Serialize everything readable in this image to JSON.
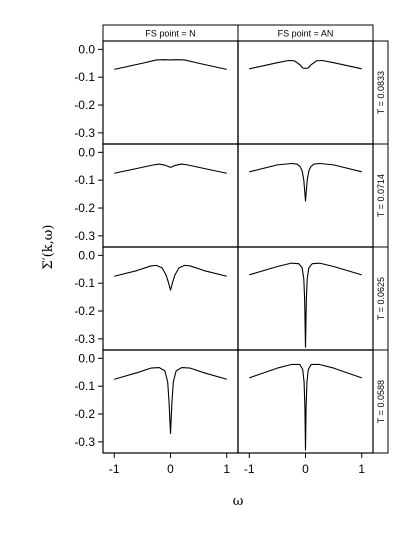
{
  "chart_data": {
    "type": "line",
    "layout": "lattice",
    "xlabel": "ω",
    "ylabel": "Σ′(k,ω)",
    "columns": [
      "FS point = N",
      "FS point = AN"
    ],
    "rows": [
      "T = 0.0833",
      "T = 0.0714",
      "T = 0.0625",
      "T = 0.0588"
    ],
    "xlim": [
      -1.2,
      1.2
    ],
    "ylim": [
      -0.34,
      0.03
    ],
    "x_ticks": [
      -1,
      0,
      1
    ],
    "x_tick_labels": [
      "-1",
      "0",
      "1"
    ],
    "y_ticks": [
      0.0,
      -0.1,
      -0.2,
      -0.3
    ],
    "y_tick_labels": [
      "0.0",
      "-0.1",
      "-0.2",
      "-0.3"
    ],
    "panels": [
      {
        "row": "T = 0.0833",
        "column": "FS point = N",
        "x": [
          -1,
          -0.5,
          -0.25,
          -0.1,
          0,
          0.1,
          0.25,
          0.5,
          1
        ],
        "y": [
          -0.072,
          -0.05,
          -0.038,
          -0.037,
          -0.038,
          -0.037,
          -0.038,
          -0.05,
          -0.072
        ]
      },
      {
        "row": "T = 0.0833",
        "column": "FS point = AN",
        "x": [
          -1,
          -0.5,
          -0.3,
          -0.2,
          -0.1,
          -0.05,
          0,
          0.05,
          0.1,
          0.2,
          0.3,
          0.5,
          1
        ],
        "y": [
          -0.07,
          -0.048,
          -0.04,
          -0.041,
          -0.055,
          -0.067,
          -0.068,
          -0.067,
          -0.055,
          -0.041,
          -0.04,
          -0.048,
          -0.07
        ]
      },
      {
        "row": "T = 0.0714",
        "column": "FS point = N",
        "x": [
          -1,
          -0.6,
          -0.3,
          -0.2,
          -0.1,
          0,
          0.1,
          0.2,
          0.3,
          0.6,
          1
        ],
        "y": [
          -0.075,
          -0.058,
          -0.045,
          -0.042,
          -0.046,
          -0.054,
          -0.046,
          -0.042,
          -0.045,
          -0.058,
          -0.075
        ]
      },
      {
        "row": "T = 0.0714",
        "column": "FS point = AN",
        "x": [
          -1,
          -0.5,
          -0.25,
          -0.15,
          -0.1,
          -0.06,
          -0.03,
          0,
          0.03,
          0.06,
          0.1,
          0.15,
          0.25,
          0.5,
          1
        ],
        "y": [
          -0.07,
          -0.045,
          -0.04,
          -0.042,
          -0.05,
          -0.066,
          -0.1,
          -0.175,
          -0.1,
          -0.066,
          -0.05,
          -0.042,
          -0.04,
          -0.045,
          -0.07
        ]
      },
      {
        "row": "T = 0.0625",
        "column": "FS point = N",
        "x": [
          -1,
          -0.6,
          -0.35,
          -0.25,
          -0.15,
          -0.08,
          -0.04,
          0,
          0.04,
          0.08,
          0.15,
          0.25,
          0.35,
          0.6,
          1
        ],
        "y": [
          -0.075,
          -0.055,
          -0.038,
          -0.036,
          -0.045,
          -0.07,
          -0.095,
          -0.125,
          -0.095,
          -0.07,
          -0.045,
          -0.036,
          -0.038,
          -0.055,
          -0.075
        ]
      },
      {
        "row": "T = 0.0625",
        "column": "FS point = AN",
        "x": [
          -1,
          -0.5,
          -0.25,
          -0.12,
          -0.06,
          -0.03,
          -0.015,
          0,
          0.015,
          0.03,
          0.06,
          0.12,
          0.25,
          0.5,
          1
        ],
        "y": [
          -0.07,
          -0.04,
          -0.028,
          -0.03,
          -0.045,
          -0.085,
          -0.16,
          -0.33,
          -0.16,
          -0.085,
          -0.045,
          -0.03,
          -0.028,
          -0.04,
          -0.07
        ]
      },
      {
        "row": "T = 0.0588",
        "column": "FS point = N",
        "x": [
          -1,
          -0.6,
          -0.35,
          -0.2,
          -0.1,
          -0.05,
          -0.025,
          0,
          0.025,
          0.05,
          0.1,
          0.2,
          0.35,
          0.6,
          1
        ],
        "y": [
          -0.075,
          -0.052,
          -0.035,
          -0.033,
          -0.045,
          -0.085,
          -0.16,
          -0.27,
          -0.16,
          -0.085,
          -0.045,
          -0.033,
          -0.035,
          -0.052,
          -0.075
        ]
      },
      {
        "row": "T = 0.0588",
        "column": "FS point = AN",
        "x": [
          -1,
          -0.5,
          -0.25,
          -0.1,
          -0.05,
          -0.025,
          -0.01,
          0,
          0.01,
          0.025,
          0.05,
          0.1,
          0.25,
          0.5,
          1
        ],
        "y": [
          -0.07,
          -0.035,
          -0.022,
          -0.022,
          -0.04,
          -0.085,
          -0.18,
          -0.33,
          -0.18,
          -0.085,
          -0.04,
          -0.022,
          -0.022,
          -0.035,
          -0.07
        ]
      }
    ]
  }
}
